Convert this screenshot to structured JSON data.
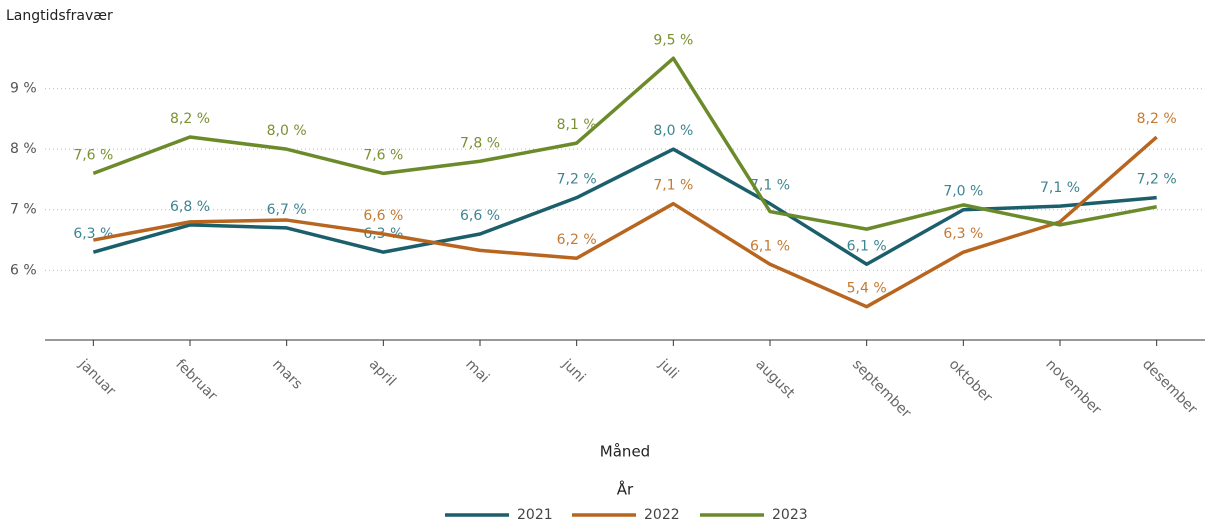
{
  "chart_data": {
    "type": "line",
    "y_label": "Langtidsfravær",
    "x_label": "Måned",
    "legend_title": "År",
    "categories": [
      "januar",
      "februar",
      "mars",
      "april",
      "mai",
      "juni",
      "juli",
      "august",
      "september",
      "oktober",
      "november",
      "desember"
    ],
    "ylim": [
      4.85,
      10
    ],
    "yticks": [
      {
        "value": 6,
        "label": "6 %"
      },
      {
        "value": 7,
        "label": "7 %"
      },
      {
        "value": 8,
        "label": "8 %"
      },
      {
        "value": 9,
        "label": "9 %"
      }
    ],
    "grid": true,
    "series": [
      {
        "name": "2021",
        "color": "#1b5f6b",
        "label_color": "#3d8592",
        "values": [
          6.3,
          6.75,
          6.7,
          6.3,
          6.6,
          7.2,
          8.0,
          7.1,
          6.1,
          7.0,
          7.06,
          7.2
        ],
        "value_labels": [
          "6,3 %",
          "6,8 %",
          "6,7 %",
          "6,3 %",
          "6,6 %",
          "7,2 %",
          "8,0 %",
          "7,1 %",
          "6,1 %",
          "7,0 %",
          "7,1 %",
          "7,2 %"
        ]
      },
      {
        "name": "2022",
        "color": "#b8661f",
        "label_color": "#c47a33",
        "values": [
          6.5,
          6.8,
          6.83,
          6.6,
          6.33,
          6.2,
          7.1,
          6.1,
          5.4,
          6.3,
          6.8,
          8.2
        ],
        "value_labels": [
          null,
          null,
          null,
          "6,6 %",
          null,
          "6,2 %",
          "7,1 %",
          "6,1 %",
          "5,4 %",
          "6,3 %",
          null,
          "8,2 %"
        ]
      },
      {
        "name": "2023",
        "color": "#6b8a2a",
        "label_color": "#7a9133",
        "values": [
          7.6,
          8.2,
          8.0,
          7.6,
          7.8,
          8.1,
          9.5,
          6.97,
          6.68,
          7.08,
          6.75,
          7.05
        ],
        "value_labels": [
          "7,6 %",
          "8,2 %",
          "8,0 %",
          "7,6 %",
          "7,8 %",
          "8,1 %",
          "9,5 %",
          null,
          null,
          null,
          null,
          null
        ]
      }
    ]
  }
}
